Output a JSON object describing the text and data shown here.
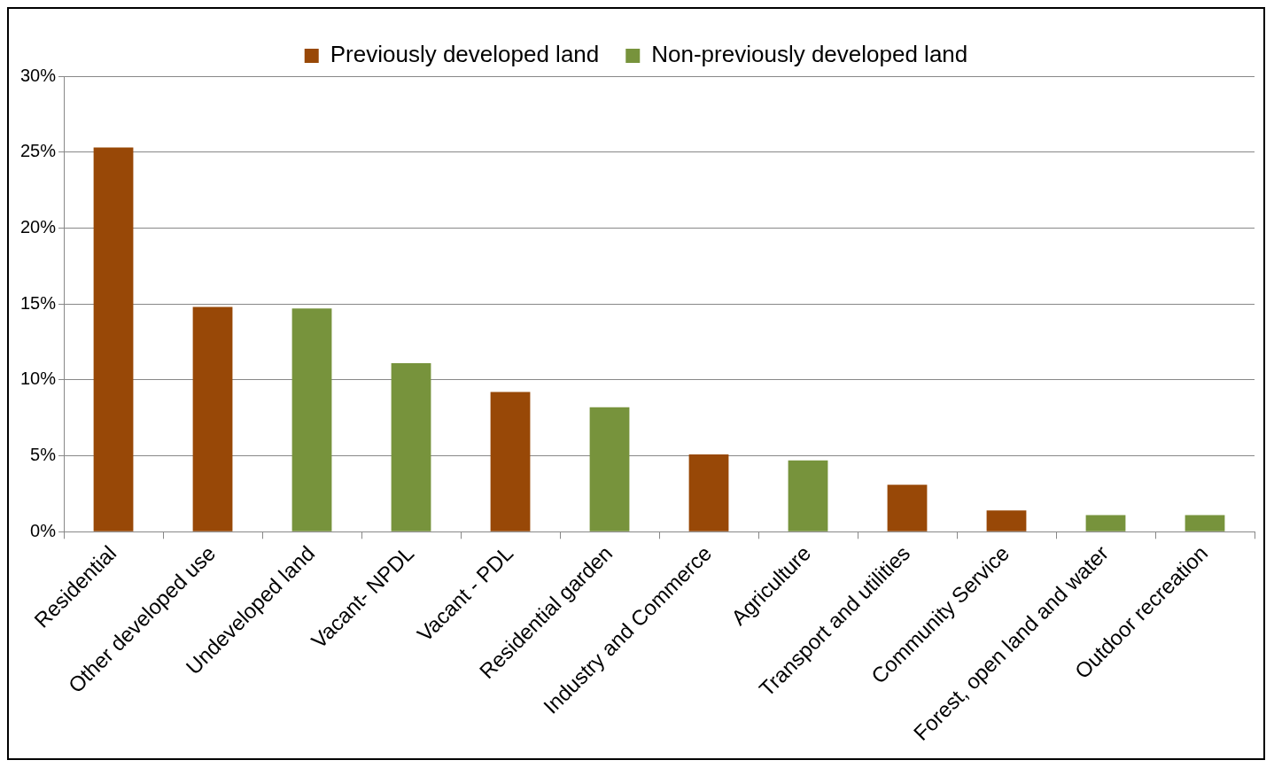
{
  "chart_data": {
    "type": "bar",
    "categories": [
      "Residential",
      "Other developed use",
      "Undeveloped land",
      "Vacant- NPDL",
      "Vacant - PDL",
      "Residential garden",
      "Industry and Commerce",
      "Agriculture",
      "Transport and utilities",
      "Community Service",
      "Forest, open land and water",
      "Outdoor recreation"
    ],
    "series": [
      {
        "name": "Previously developed land",
        "color": "#984807",
        "values": [
          25.3,
          14.8,
          null,
          null,
          9.2,
          null,
          5.1,
          null,
          3.1,
          1.4,
          null,
          null
        ]
      },
      {
        "name": "Non-previously developed land",
        "color": "#77933c",
        "values": [
          null,
          null,
          14.7,
          11.1,
          null,
          8.2,
          null,
          4.7,
          null,
          null,
          1.1,
          1.1
        ]
      }
    ],
    "ylim": [
      0,
      30
    ],
    "yticks": [
      {
        "value": 0,
        "label": "0%"
      },
      {
        "value": 5,
        "label": "5%"
      },
      {
        "value": 10,
        "label": "10%"
      },
      {
        "value": 15,
        "label": "15%"
      },
      {
        "value": 20,
        "label": "20%"
      },
      {
        "value": 25,
        "label": "25%"
      },
      {
        "value": 30,
        "label": "30%"
      }
    ],
    "grid": "y",
    "legend": "top"
  }
}
